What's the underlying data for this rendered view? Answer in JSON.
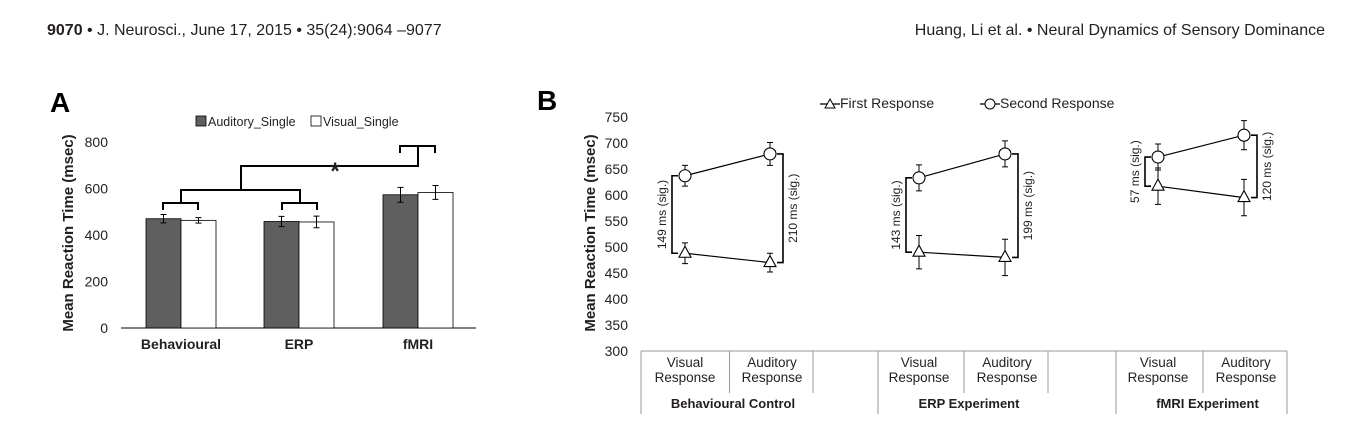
{
  "header": {
    "page_number": "9070",
    "journal": " • J. Neurosci., June 17, 2015 • 35(24):9064 –9077",
    "running_title": "Huang, Li et al. • Neural Dynamics of Sensory Dominance"
  },
  "colors": {
    "dark_bar": "#5f5f5f",
    "light_bar": "#ffffff",
    "line": "#000000"
  },
  "chart_data": [
    {
      "panel": "A",
      "type": "bar",
      "ylabel": "Mean Reaction Time (msec)",
      "ylim": [
        0,
        800
      ],
      "yticks": [
        "0",
        "200",
        "400",
        "600",
        "800"
      ],
      "categories": [
        "Behavioural",
        "ERP",
        "fMRI"
      ],
      "legend": "top",
      "series": [
        {
          "name": "Auditory_Single",
          "values": [
            470,
            458,
            573
          ],
          "errors": [
            18,
            22,
            32
          ]
        },
        {
          "name": "Visual_Single",
          "values": [
            463,
            456,
            583
          ],
          "errors": [
            12,
            25,
            30
          ]
        }
      ],
      "significance": "*"
    },
    {
      "panel": "B",
      "type": "line",
      "ylabel": "Mean Reaction Time (msec)",
      "ylim": [
        300,
        750
      ],
      "yticks": [
        "300",
        "350",
        "400",
        "450",
        "500",
        "550",
        "600",
        "650",
        "700",
        "750"
      ],
      "legend": "top",
      "series_names": [
        "First Response",
        "Second Response"
      ],
      "groups": [
        {
          "name": "Behavioural Control",
          "x": [
            "Visual Response",
            "Auditory Response"
          ],
          "first": [
            488,
            470
          ],
          "first_err": [
            20,
            18
          ],
          "second": [
            637,
            679
          ],
          "second_err": [
            20,
            22
          ],
          "left_diff": "149 ms (sig.)",
          "right_diff": "210 ms (sig.)"
        },
        {
          "name": "ERP  Experiment",
          "x": [
            "Visual Response",
            "Auditory Response"
          ],
          "first": [
            490,
            480
          ],
          "first_err": [
            32,
            35
          ],
          "second": [
            633,
            679
          ],
          "second_err": [
            25,
            25
          ],
          "left_diff": "143 ms (sig.)",
          "right_diff": "199 ms (sig.)"
        },
        {
          "name": "fMRI Experiment",
          "x": [
            "Visual Response",
            "Auditory Response"
          ],
          "first": [
            617,
            595
          ],
          "first_err": [
            35,
            35
          ],
          "second": [
            673,
            715
          ],
          "second_err": [
            25,
            28
          ],
          "left_diff": "57 ms (sig.)",
          "right_diff": "120 ms (sig.)"
        }
      ]
    }
  ]
}
